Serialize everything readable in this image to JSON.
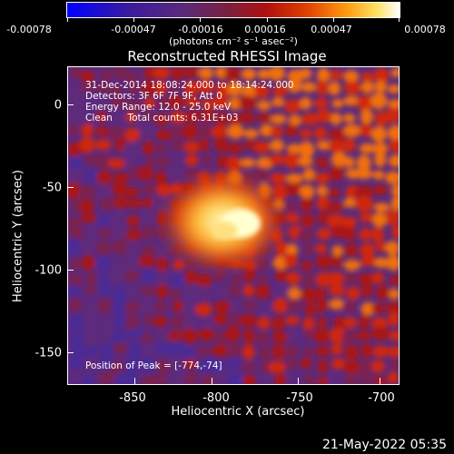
{
  "colorbar": {
    "tick_labels": [
      "-0.00078",
      "-0.00047",
      "-0.00016",
      "0.00016",
      "0.00047",
      "0.00078"
    ],
    "units": "(photons cm⁻² s⁻¹ asec⁻²)"
  },
  "title": "Reconstructed RHESSI Image",
  "info": {
    "time_range": "31-Dec-2014 18:08:24.000 to 18:14:24.000",
    "detectors": "Detectors: 3F 6F 7F 9F, Att 0",
    "energy_range": "Energy Range: 12.0 - 25.0 keV",
    "algorithm": "Clean     Total counts: 6.31E+03",
    "peak": "Position of Peak = [-774,-74]"
  },
  "axes": {
    "xlabel": "Heliocentric X (arcsec)",
    "ylabel": "Heliocentric Y (arcsec)",
    "x_ticks": [
      "-850",
      "-800",
      "-750",
      "-700"
    ],
    "y_ticks": [
      "0",
      "-50",
      "-100",
      "-150"
    ],
    "x_range": [
      -885,
      -693
    ],
    "y_range": [
      -170,
      16
    ]
  },
  "footer_timestamp": "21-May-2022 05:35"
}
